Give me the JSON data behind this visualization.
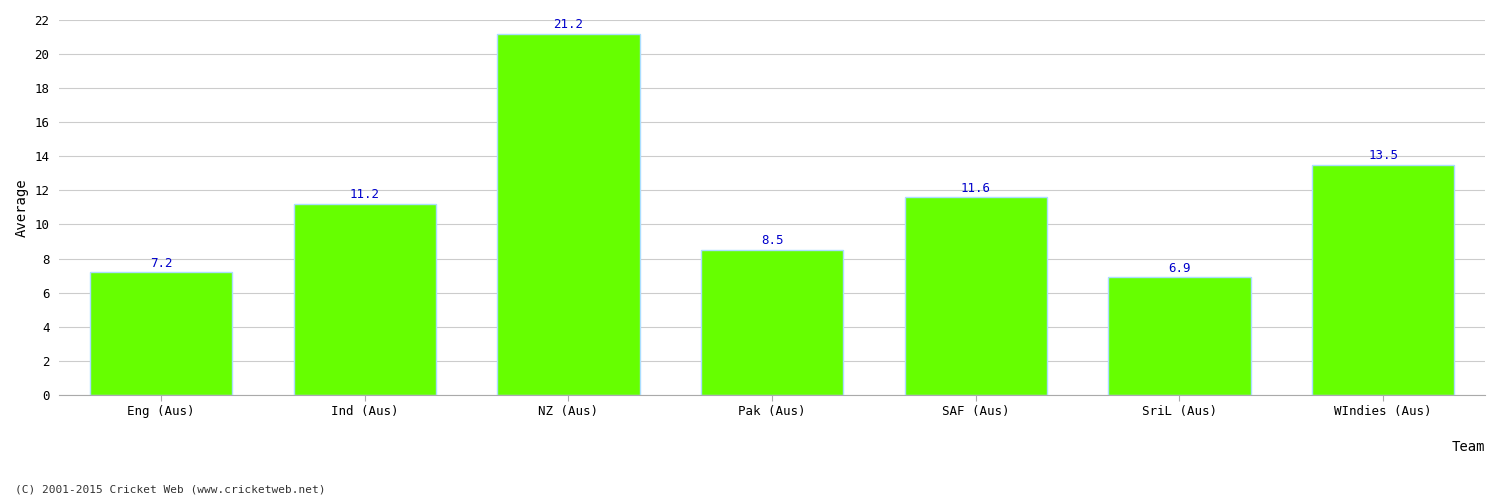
{
  "categories": [
    "Eng (Aus)",
    "Ind (Aus)",
    "NZ (Aus)",
    "Pak (Aus)",
    "SAF (Aus)",
    "SriL (Aus)",
    "WIndies (Aus)"
  ],
  "values": [
    7.2,
    11.2,
    21.2,
    8.5,
    11.6,
    6.9,
    13.5
  ],
  "bar_color": "#66ff00",
  "bar_edge_color": "#aaddff",
  "label_color": "#0000cc",
  "ylabel": "Average",
  "xlabel": "Team",
  "ylim": [
    0,
    22
  ],
  "yticks": [
    0,
    2,
    4,
    6,
    8,
    10,
    12,
    14,
    16,
    18,
    20,
    22
  ],
  "grid_color": "#cccccc",
  "bg_color": "#ffffff",
  "font_family": "monospace",
  "label_fontsize": 9,
  "tick_fontsize": 9,
  "axis_label_fontsize": 10,
  "footnote": "(C) 2001-2015 Cricket Web (www.cricketweb.net)"
}
